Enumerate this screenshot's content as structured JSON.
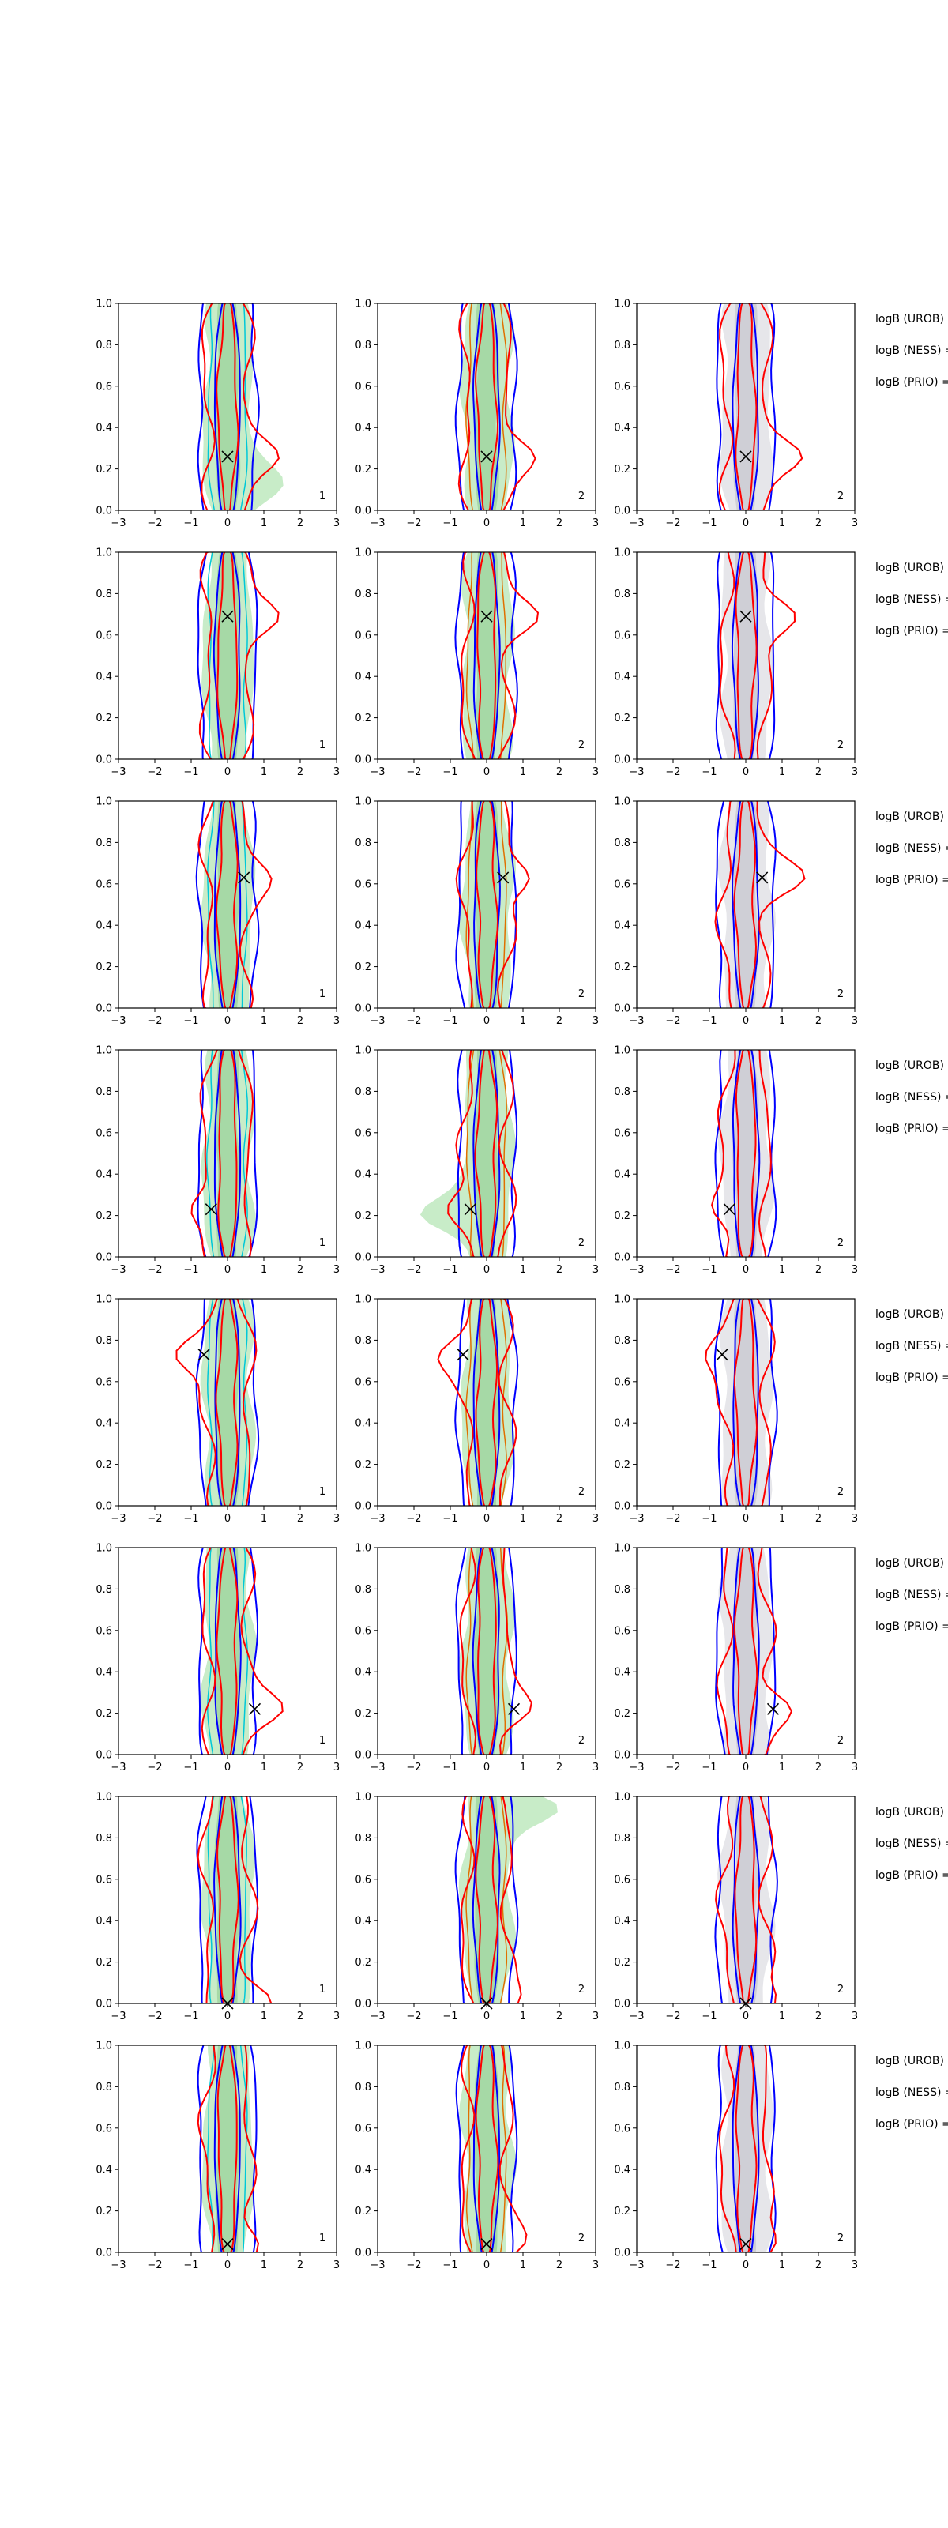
{
  "colors": {
    "uniform_fill": "#c8ecc8",
    "uniform_fill_dark": "#a6d9a6",
    "gray_fill": "#e6e6ea",
    "gray_fill_dark": "#cfcfd6",
    "blue_line": "#0000ff",
    "red_line": "#ff0000",
    "orange_line": "#e07000",
    "cyan_line": "#00c8d8",
    "marker": "#000000",
    "axes": "#000000"
  },
  "side_labels": [
    "logB (UROB) =",
    "logB (NESS) =",
    "logB (PRIO) ="
  ],
  "chart_data": {
    "type": "contour-grid",
    "rows": 8,
    "columns": 3,
    "xlim": [
      -3,
      3
    ],
    "ylim": [
      0,
      1
    ],
    "x_ticks": [
      "−3",
      "−2",
      "−1",
      "0",
      "1",
      "2",
      "3"
    ],
    "y_ticks": [
      "0.0",
      "0.2",
      "0.4",
      "0.6",
      "0.8",
      "1.0"
    ],
    "column_corner_labels": [
      "1",
      "2",
      "2"
    ],
    "column_fill_style": [
      "green",
      "green",
      "gray"
    ],
    "markers": [
      {
        "x": 0.0,
        "y": 0.26
      },
      {
        "x": 0.0,
        "y": 0.69
      },
      {
        "x": 0.45,
        "y": 0.63
      },
      {
        "x": -0.45,
        "y": 0.23
      },
      {
        "x": -0.65,
        "y": 0.73
      },
      {
        "x": 0.75,
        "y": 0.22
      },
      {
        "x": 0.0,
        "y": 0.0
      },
      {
        "x": 0.0,
        "y": 0.04
      }
    ]
  }
}
